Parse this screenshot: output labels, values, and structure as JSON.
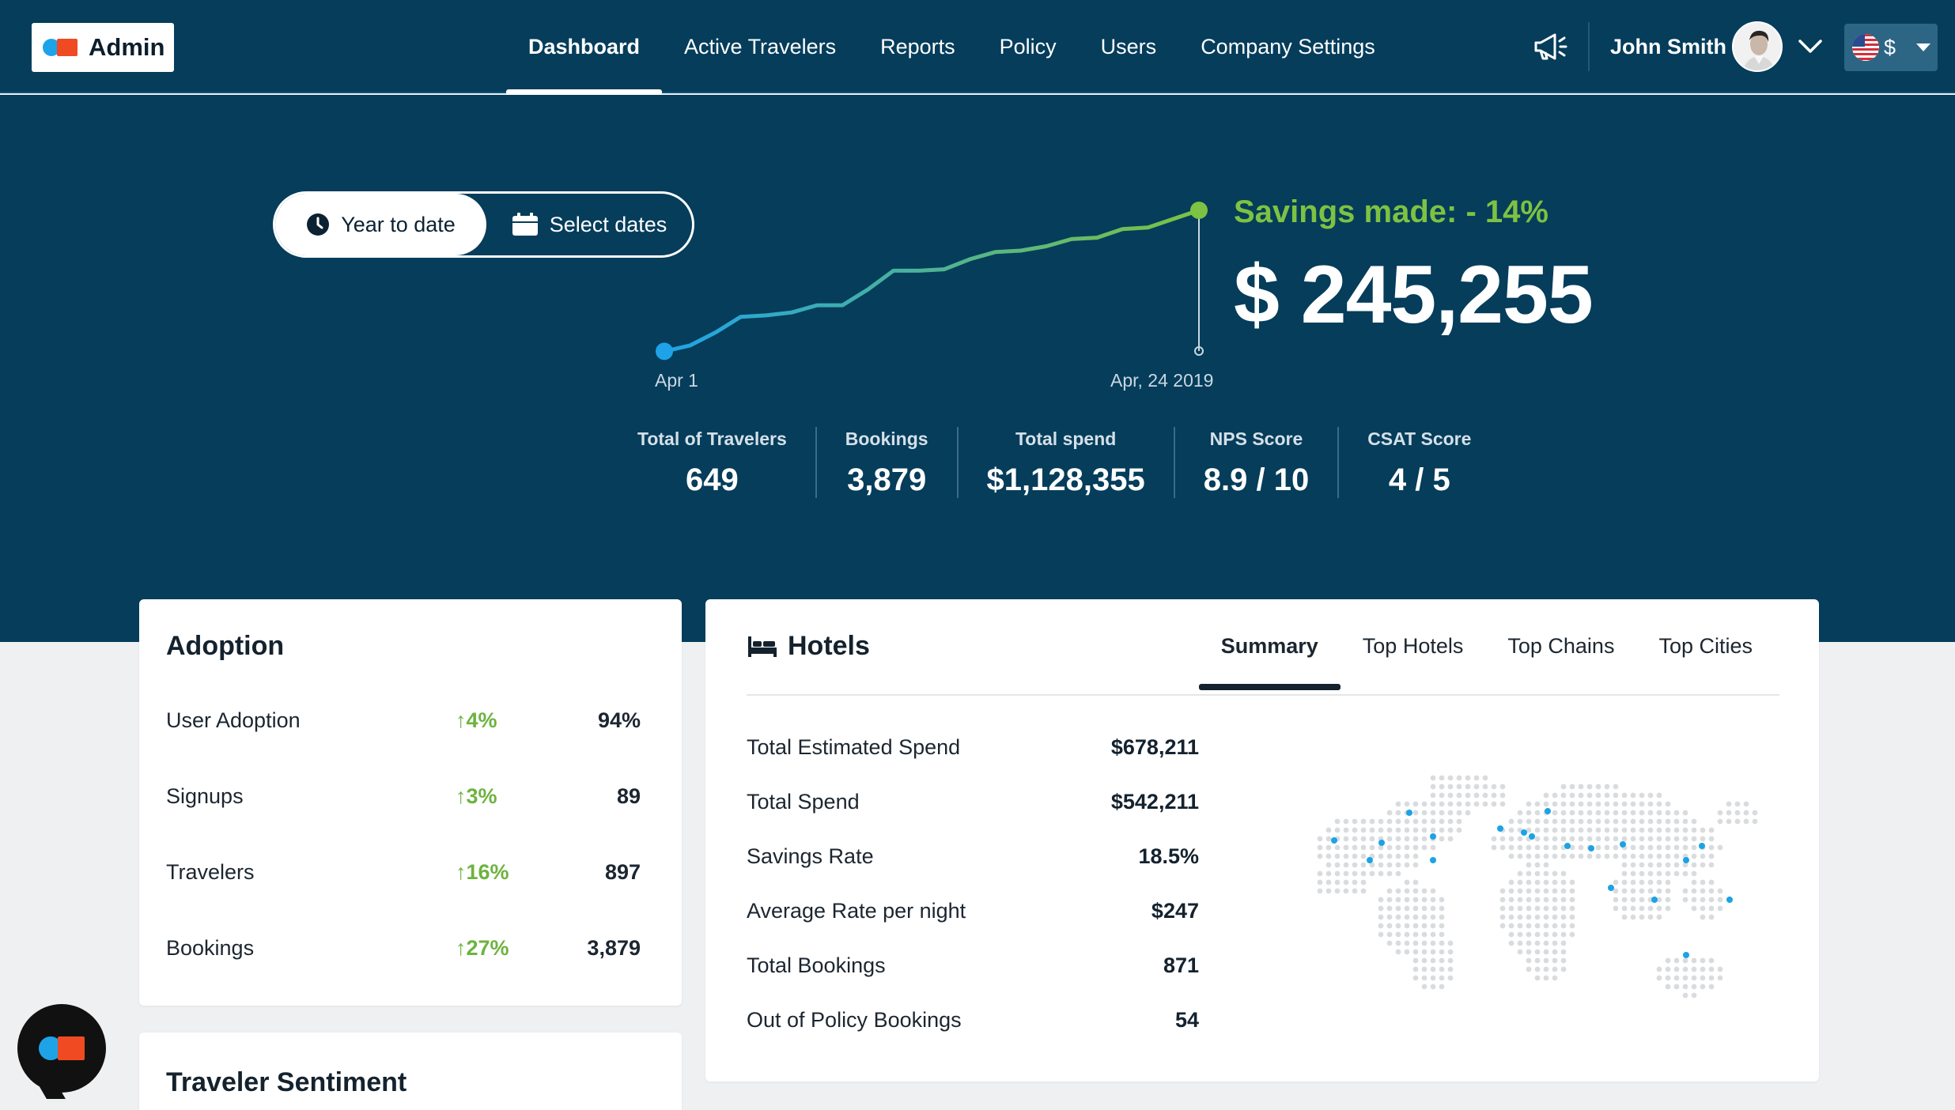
{
  "app": {
    "logo_text": "Admin"
  },
  "nav": {
    "items": [
      {
        "label": "Dashboard",
        "active": true
      },
      {
        "label": "Active Travelers",
        "active": false
      },
      {
        "label": "Reports",
        "active": false
      },
      {
        "label": "Policy",
        "active": false
      },
      {
        "label": "Users",
        "active": false
      },
      {
        "label": "Company Settings",
        "active": false
      }
    ]
  },
  "header": {
    "user_name": "John Smith",
    "currency_symbol": "$",
    "icons": [
      "megaphone-icon",
      "avatar",
      "chevron-down-icon",
      "us-flag-icon",
      "caret-down-icon"
    ]
  },
  "date_toggle": {
    "year_to_date": "Year to date",
    "select_dates": "Select dates",
    "selected": "year_to_date"
  },
  "savings": {
    "label": "Savings made: - 14%",
    "value": "$ 245,255",
    "start_label": "Apr 1",
    "end_label": "Apr, 24 2019",
    "trend": [
      0.02,
      0.06,
      0.15,
      0.26,
      0.27,
      0.29,
      0.34,
      0.34,
      0.45,
      0.58,
      0.58,
      0.59,
      0.66,
      0.71,
      0.72,
      0.75,
      0.8,
      0.81,
      0.87,
      0.88,
      0.94,
      1.0
    ]
  },
  "stats": [
    {
      "label": "Total of Travelers",
      "value": "649"
    },
    {
      "label": "Bookings",
      "value": "3,879"
    },
    {
      "label": "Total spend",
      "value": "$1,128,355"
    },
    {
      "label": "NPS Score",
      "value": "8.9 / 10"
    },
    {
      "label": "CSAT Score",
      "value": "4  / 5"
    }
  ],
  "adoption": {
    "title": "Adoption",
    "rows": [
      {
        "label": "User Adoption",
        "change": "↑4%",
        "value": "94%"
      },
      {
        "label": "Signups",
        "change": "↑3%",
        "value": "89"
      },
      {
        "label": "Travelers",
        "change": "↑16%",
        "value": "897"
      },
      {
        "label": "Bookings",
        "change": "↑27%",
        "value": "3,879"
      }
    ]
  },
  "sentiment": {
    "title": "Traveler Sentiment"
  },
  "hotels": {
    "title": "Hotels",
    "tabs": [
      {
        "label": "Summary",
        "active": true
      },
      {
        "label": "Top Hotels",
        "active": false
      },
      {
        "label": "Top Chains",
        "active": false
      },
      {
        "label": "Top Cities",
        "active": false
      }
    ],
    "rows": [
      {
        "label": "Total Estimated Spend",
        "value": "$678,211"
      },
      {
        "label": "Total Spend",
        "value": "$542,211"
      },
      {
        "label": "Savings Rate",
        "value": "18.5%"
      },
      {
        "label": "Average Rate per night",
        "value": "$247"
      },
      {
        "label": "Total Bookings",
        "value": "871"
      },
      {
        "label": "Out of Policy Bookings",
        "value": "54"
      }
    ]
  },
  "colors": {
    "navy": "#053d5b",
    "green": "#7dc242",
    "blue": "#1fa3e8",
    "red": "#f04a23"
  }
}
